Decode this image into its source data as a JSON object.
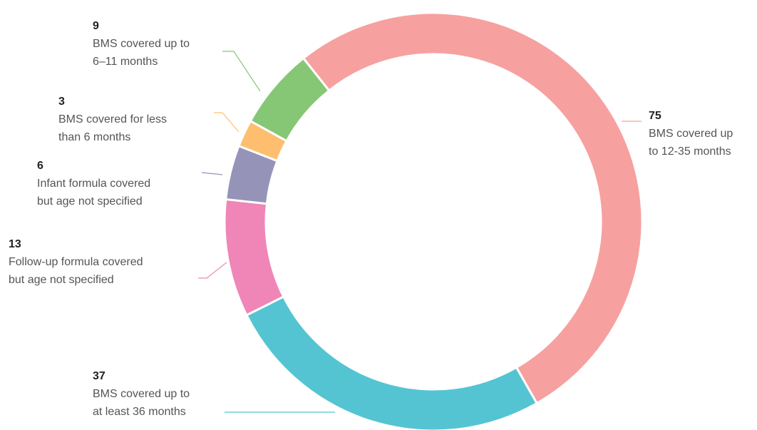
{
  "chart_data": {
    "type": "donut",
    "categories": [
      "BMS covered up\nto 12-35 months",
      "BMS covered up to\nat least 36 months",
      "Follow-up formula covered\nbut age not specified",
      "Infant formula covered\nbut age not specified",
      "BMS covered for less\nthan 6 months",
      "BMS covered up to\n6–11 months"
    ],
    "values": [
      75,
      37,
      13,
      6,
      3,
      9
    ],
    "colors": [
      "#f6a19f",
      "#55c4d2",
      "#ef86b7",
      "#9594b8",
      "#fdbf6f",
      "#86c775"
    ]
  }
}
